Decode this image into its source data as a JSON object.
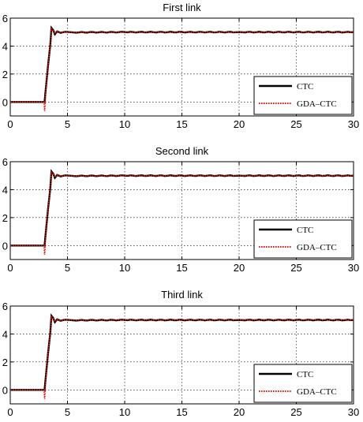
{
  "chart_data": [
    {
      "type": "line",
      "title": "First link",
      "xlim": [
        0,
        30
      ],
      "ylim": [
        -1,
        6
      ],
      "xticks": [
        "0",
        "5",
        "10",
        "15",
        "20",
        "25",
        "30"
      ],
      "yticks": [
        "0",
        "2",
        "4",
        "6"
      ],
      "grid": true,
      "legend_position": "bottom-right",
      "series": [
        {
          "name": "CTC",
          "color": "#000000",
          "style": "solid",
          "x": [
            0,
            3.0,
            3.1,
            3.3,
            3.5,
            3.6,
            3.75,
            3.9,
            4.1,
            4.4,
            4.8,
            5.5,
            10,
            20,
            30
          ],
          "y": [
            0,
            0,
            0.9,
            2.6,
            4.1,
            5.3,
            5.15,
            4.85,
            5.05,
            4.95,
            5.02,
            4.98,
            5.0,
            5.0,
            5.0
          ]
        },
        {
          "name": "GDA–CTC",
          "color": "#e8170f",
          "style": "dotted",
          "x": [
            0,
            2.95,
            3.0,
            3.05,
            3.1,
            3.3,
            3.5,
            3.6,
            3.75,
            3.9,
            4.1,
            4.4,
            4.8,
            5.5,
            10,
            20,
            30
          ],
          "y": [
            0,
            0,
            -0.65,
            -0.2,
            0.9,
            2.6,
            4.1,
            5.25,
            5.1,
            4.88,
            5.04,
            4.96,
            5.02,
            4.98,
            5.0,
            5.0,
            5.0
          ]
        }
      ]
    },
    {
      "type": "line",
      "title": "Second link",
      "xlim": [
        0,
        30
      ],
      "ylim": [
        -1,
        6
      ],
      "xticks": [
        "0",
        "5",
        "10",
        "15",
        "20",
        "25",
        "30"
      ],
      "yticks": [
        "0",
        "2",
        "4",
        "6"
      ],
      "grid": true,
      "legend_position": "bottom-right",
      "series": [
        {
          "name": "CTC",
          "color": "#000000",
          "style": "solid",
          "x": [
            0,
            3.0,
            3.1,
            3.3,
            3.5,
            3.6,
            3.75,
            3.9,
            4.1,
            4.4,
            4.8,
            5.5,
            10,
            20,
            30
          ],
          "y": [
            0,
            0,
            0.9,
            2.6,
            4.1,
            5.3,
            5.15,
            4.85,
            5.05,
            4.95,
            5.02,
            4.98,
            5.0,
            5.0,
            5.0
          ]
        },
        {
          "name": "GDA–CTC",
          "color": "#e8170f",
          "style": "dotted",
          "x": [
            0,
            2.95,
            3.0,
            3.05,
            3.1,
            3.3,
            3.5,
            3.6,
            3.75,
            3.9,
            4.1,
            4.4,
            4.8,
            5.5,
            10,
            20,
            30
          ],
          "y": [
            0,
            0,
            -0.65,
            -0.2,
            0.9,
            2.6,
            4.1,
            5.25,
            5.1,
            4.88,
            5.04,
            4.96,
            5.02,
            4.98,
            5.0,
            5.0,
            5.0
          ]
        }
      ]
    },
    {
      "type": "line",
      "title": "Third link",
      "xlim": [
        0,
        30
      ],
      "ylim": [
        -1,
        6
      ],
      "xticks": [
        "0",
        "5",
        "10",
        "15",
        "20",
        "25",
        "30"
      ],
      "yticks": [
        "0",
        "2",
        "4",
        "6"
      ],
      "grid": true,
      "legend_position": "bottom-right",
      "series": [
        {
          "name": "CTC",
          "color": "#000000",
          "style": "solid",
          "x": [
            0,
            3.0,
            3.1,
            3.3,
            3.5,
            3.6,
            3.75,
            3.9,
            4.1,
            4.4,
            4.8,
            5.5,
            10,
            20,
            30
          ],
          "y": [
            0,
            0,
            0.9,
            2.6,
            4.1,
            5.3,
            5.15,
            4.85,
            5.05,
            4.95,
            5.02,
            4.98,
            5.0,
            5.0,
            5.0
          ]
        },
        {
          "name": "GDA–CTC",
          "color": "#e8170f",
          "style": "dotted",
          "x": [
            0,
            2.95,
            3.0,
            3.05,
            3.1,
            3.3,
            3.5,
            3.6,
            3.75,
            3.9,
            4.1,
            4.4,
            4.8,
            5.5,
            10,
            20,
            30
          ],
          "y": [
            0,
            0,
            -0.65,
            -0.2,
            0.9,
            2.6,
            4.1,
            5.25,
            5.1,
            4.88,
            5.04,
            4.96,
            5.02,
            4.98,
            5.0,
            5.0,
            5.0
          ]
        }
      ]
    }
  ]
}
